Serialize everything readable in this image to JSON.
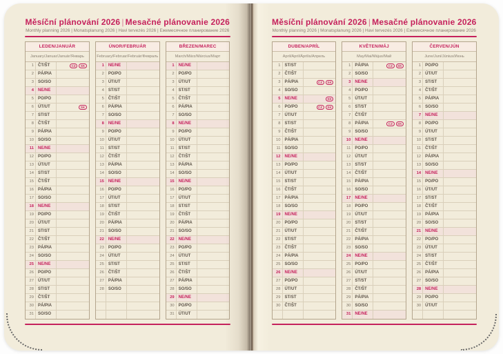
{
  "colors": {
    "accent": "#c5215c",
    "paper": "#f2ecdb",
    "sunday_bg": "#f2e2db"
  },
  "header": {
    "title_cz": "Měsíční plánování 2026",
    "title_sep": "|",
    "title_sk": "Mesačné plánovanie 2026",
    "subtitle": "Monthly planning 2026 | Monatsplanung 2026 | Havi tervezés 2026 | Ежемесячное планирование 2026"
  },
  "badge_labels": {
    "cz": "CZ",
    "sk": "SK"
  },
  "day_abbreviations": {
    "monday": "PO/PO",
    "tuesday": "ÚT/UT",
    "wednesday": "ST/ST",
    "thursday": "ČT/ŠT",
    "friday": "PÁ/PIA",
    "saturday": "SO/SO",
    "sunday": "NE/NE"
  },
  "months": [
    {
      "id": "leden-januar",
      "name": "LEDEN/JANUÁR",
      "intl": "January/Januar/Január/Январь",
      "days": [
        "ČT/ŠT",
        "PÁ/PIA",
        "SO/SO",
        "NE/NE",
        "PO/PO",
        "ÚT/UT",
        "ST/ST",
        "ČT/ŠT",
        "PÁ/PIA",
        "SO/SO",
        "NE/NE",
        "PO/PO",
        "ÚT/UT",
        "ST/ST",
        "ČT/ŠT",
        "PÁ/PIA",
        "SO/SO",
        "NE/NE",
        "PO/PO",
        "ÚT/UT",
        "ST/ST",
        "ČT/ŠT",
        "PÁ/PIA",
        "SO/SO",
        "NE/NE",
        "PO/PO",
        "ÚT/UT",
        "ST/ST",
        "ČT/ŠT",
        "PÁ/PIA",
        "SO/SO"
      ],
      "holidays": {
        "1": [
          "CZ",
          "SK"
        ],
        "6": [
          "SK"
        ]
      },
      "empty_rows": 0
    },
    {
      "id": "unor-februar",
      "name": "ÚNOR/FEBRUÁR",
      "intl": "February/Februar/Február/Февраль",
      "days": [
        "NE/NE",
        "PO/PO",
        "ÚT/UT",
        "ST/ST",
        "ČT/ŠT",
        "PÁ/PIA",
        "SO/SO",
        "NE/NE",
        "PO/PO",
        "ÚT/UT",
        "ST/ST",
        "ČT/ŠT",
        "PÁ/PIA",
        "SO/SO",
        "NE/NE",
        "PO/PO",
        "ÚT/UT",
        "ST/ST",
        "ČT/ŠT",
        "PÁ/PIA",
        "SO/SO",
        "NE/NE",
        "PO/PO",
        "ÚT/UT",
        "ST/ST",
        "ČT/ŠT",
        "PÁ/PIA",
        "SO/SO"
      ],
      "holidays": {},
      "empty_rows": 3
    },
    {
      "id": "brezen-marec",
      "name": "BŘEZEN/MAREC",
      "intl": "March/März/Március/Март",
      "days": [
        "NE/NE",
        "PO/PO",
        "ÚT/UT",
        "ST/ST",
        "ČT/ŠT",
        "PÁ/PIA",
        "SO/SO",
        "NE/NE",
        "PO/PO",
        "ÚT/UT",
        "ST/ST",
        "ČT/ŠT",
        "PÁ/PIA",
        "SO/SO",
        "NE/NE",
        "PO/PO",
        "ÚT/UT",
        "ST/ST",
        "ČT/ŠT",
        "PÁ/PIA",
        "SO/SO",
        "NE/NE",
        "PO/PO",
        "ÚT/UT",
        "ST/ST",
        "ČT/ŠT",
        "PÁ/PIA",
        "SO/SO",
        "NE/NE",
        "PO/PO",
        "ÚT/UT"
      ],
      "holidays": {},
      "empty_rows": 0
    },
    {
      "id": "duben-april",
      "name": "DUBEN/APRÍL",
      "intl": "April/April/Április/Апрель",
      "days": [
        "ST/ST",
        "ČT/ŠT",
        "PÁ/PIA",
        "SO/SO",
        "NE/NE",
        "PO/PO",
        "ÚT/UT",
        "ST/ST",
        "ČT/ŠT",
        "PÁ/PIA",
        "SO/SO",
        "NE/NE",
        "PO/PO",
        "ÚT/UT",
        "ST/ST",
        "ČT/ŠT",
        "PÁ/PIA",
        "SO/SO",
        "NE/NE",
        "PO/PO",
        "ÚT/UT",
        "ST/ST",
        "ČT/ŠT",
        "PÁ/PIA",
        "SO/SO",
        "NE/NE",
        "PO/PO",
        "ÚT/UT",
        "ST/ST",
        "ČT/ŠT"
      ],
      "holidays": {
        "3": [
          "CZ",
          "SK"
        ],
        "5": [
          "SK"
        ],
        "6": [
          "CZ",
          "SK"
        ]
      },
      "empty_rows": 1
    },
    {
      "id": "kveten-maj",
      "name": "KVĚTEN/MÁJ",
      "intl": "May/Mai/Május/Май",
      "days": [
        "PÁ/PIA",
        "SO/SO",
        "NE/NE",
        "PO/PO",
        "ÚT/UT",
        "ST/ST",
        "ČT/ŠT",
        "PÁ/PIA",
        "SO/SO",
        "NE/NE",
        "PO/PO",
        "ÚT/UT",
        "ST/ST",
        "ČT/ŠT",
        "PÁ/PIA",
        "SO/SO",
        "NE/NE",
        "PO/PO",
        "ÚT/UT",
        "ST/ST",
        "ČT/ŠT",
        "PÁ/PIA",
        "SO/SO",
        "NE/NE",
        "PO/PO",
        "ÚT/UT",
        "ST/ST",
        "ČT/ŠT",
        "PÁ/PIA",
        "SO/SO",
        "NE/NE"
      ],
      "holidays": {
        "1": [
          "CZ",
          "SK"
        ],
        "8": [
          "CZ",
          "SK"
        ]
      },
      "empty_rows": 0
    },
    {
      "id": "cerven-jun",
      "name": "ČERVEN/JÚN",
      "intl": "June/Juni/Június/Июнь",
      "days": [
        "PO/PO",
        "ÚT/UT",
        "ST/ST",
        "ČT/ŠT",
        "PÁ/PIA",
        "SO/SO",
        "NE/NE",
        "PO/PO",
        "ÚT/UT",
        "ST/ST",
        "ČT/ŠT",
        "PÁ/PIA",
        "SO/SO",
        "NE/NE",
        "PO/PO",
        "ÚT/UT",
        "ST/ST",
        "ČT/ŠT",
        "PÁ/PIA",
        "SO/SO",
        "NE/NE",
        "PO/PO",
        "ÚT/UT",
        "ST/ST",
        "ČT/ŠT",
        "PÁ/PIA",
        "SO/SO",
        "NE/NE",
        "PO/PO",
        "ÚT/UT"
      ],
      "holidays": {},
      "empty_rows": 1
    }
  ]
}
